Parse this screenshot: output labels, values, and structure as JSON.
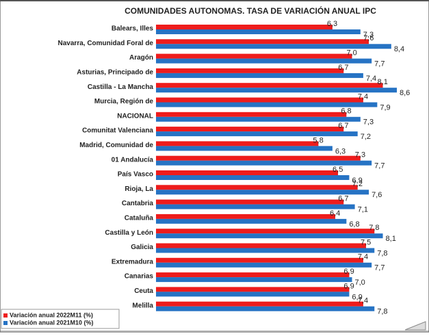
{
  "chart_data": {
    "type": "bar",
    "orientation": "horizontal",
    "title": "COMUNIDADES AUTONOMAS. TASA DE VARIACIÓN ANUAL IPC",
    "categories": [
      "Balears, Illes",
      "Navarra, Comunidad Foral de",
      "Aragón",
      "Asturias, Principado de",
      "Castilla - La Mancha",
      "Murcia, Región de",
      "NACIONAL",
      "Comunitat Valenciana",
      "Madrid, Comunidad de",
      "01 Andalucía",
      "País Vasco",
      "Rioja, La",
      "Cantabria",
      "Cataluña",
      "Castilla y León",
      "Galicia",
      "Extremadura",
      "Canarias",
      "Ceuta",
      "Melilla"
    ],
    "series": [
      {
        "name": "Variación anual 2022M11 (%)",
        "color": "#ee1c1c",
        "values": [
          6.3,
          7.6,
          7.0,
          6.7,
          8.1,
          7.4,
          6.8,
          6.7,
          5.8,
          7.3,
          6.5,
          7.2,
          6.7,
          6.4,
          7.8,
          7.5,
          7.4,
          6.9,
          6.9,
          7.4
        ],
        "value_labels": [
          "6,3",
          "7,6",
          "7,0",
          "6,7",
          "8,1",
          "7,4",
          "6,8",
          "6,7",
          "5,8",
          "7,3",
          "6,5",
          "7,2",
          "6,7",
          "6,4",
          "7,8",
          "7,5",
          "7,4",
          "6,9",
          "6,9",
          "7,4"
        ]
      },
      {
        "name": "Variación anual 2021M10 (%)",
        "color": "#2673c4",
        "values": [
          7.3,
          8.4,
          7.7,
          7.4,
          8.6,
          7.9,
          7.3,
          7.2,
          6.3,
          7.7,
          6.9,
          7.6,
          7.1,
          6.8,
          8.1,
          7.8,
          7.7,
          7.0,
          6.9,
          7.8
        ],
        "value_labels": [
          "7,3",
          "8,4",
          "7,7",
          "7,4",
          "8,6",
          "7,9",
          "7,3",
          "7,2",
          "6,3",
          "7,7",
          "6,9",
          "7,6",
          "7,1",
          "6,8",
          "8,1",
          "7,8",
          "7,7",
          "7,0",
          "6,9",
          "7,8"
        ]
      }
    ],
    "legend": "bottom-left"
  }
}
